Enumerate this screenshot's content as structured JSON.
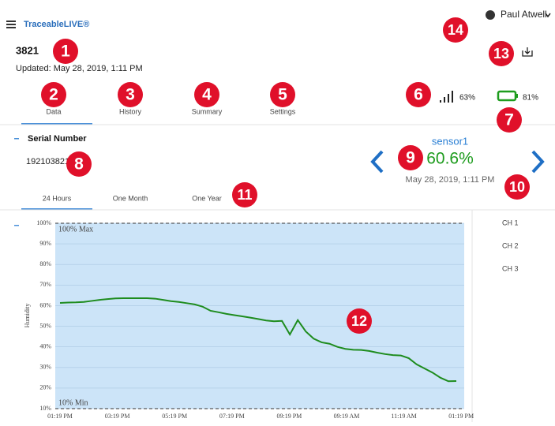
{
  "header": {
    "logo": "TraceableLIVE®",
    "user": "Paul Atwell"
  },
  "device": {
    "id": "3821",
    "updated": "Updated: May 28, 2019, 1:11 PM",
    "signal": "63%",
    "battery": "81%"
  },
  "tabs": [
    "Data",
    "History",
    "Summary",
    "Settings"
  ],
  "serial": {
    "label": "Serial Number",
    "value": "192103821"
  },
  "sensor": {
    "name": "sensor1",
    "reading": "60.6%",
    "time": "May 28, 2019, 1:11 PM"
  },
  "ranges": [
    "24 Hours",
    "One Month",
    "One Year"
  ],
  "channels": [
    "CH 1",
    "CH 2",
    "CH 3"
  ],
  "annotations": [
    "1",
    "2",
    "3",
    "4",
    "5",
    "6",
    "7",
    "8",
    "9",
    "10",
    "11",
    "12",
    "13",
    "14"
  ],
  "chart": {
    "type": "line",
    "ylabel": "Humidity",
    "max_label": "100% Max",
    "min_label": "10% Min",
    "xticks": [
      "01:19 PM",
      "03:19 PM",
      "05:19 PM",
      "07:19 PM",
      "09:19 PM",
      "09:19 AM",
      "11:19 AM",
      "01:19 PM"
    ],
    "values": [
      61.3,
      61.5,
      61.6,
      61.8,
      62.3,
      62.8,
      63.2,
      63.5,
      63.6,
      63.6,
      63.6,
      63.6,
      63.4,
      62.8,
      62.2,
      61.8,
      61.2,
      60.6,
      59.5,
      57.5,
      56.8,
      56,
      55.4,
      54.8,
      54.2,
      53.5,
      52.8,
      52.4,
      52.6,
      46,
      53,
      47.5,
      44,
      42.2,
      41.5,
      40,
      39,
      38.6,
      38.5,
      38,
      37.2,
      36.5,
      36,
      35.8,
      34.5,
      31.5,
      29.5,
      27.5,
      25,
      23.3,
      23.4
    ],
    "color": "#1e8c1e",
    "ylim": [
      10,
      100
    ],
    "yticks": [
      {
        "value": 10,
        "label": "10%"
      },
      {
        "value": 20,
        "label": "20%"
      },
      {
        "value": 30,
        "label": "30%"
      },
      {
        "value": 40,
        "label": "40%"
      },
      {
        "value": 50,
        "label": "50%"
      },
      {
        "value": 60,
        "label": "60%"
      },
      {
        "value": 70,
        "label": "70%"
      },
      {
        "value": 80,
        "label": "80%"
      },
      {
        "value": 90,
        "label": "90%"
      },
      {
        "value": 100,
        "label": "100%"
      }
    ]
  }
}
